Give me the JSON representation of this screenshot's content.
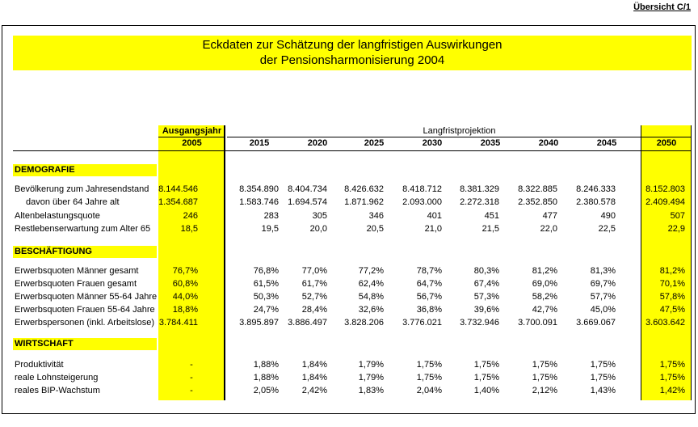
{
  "header": {
    "uebersicht": "Übersicht C/1"
  },
  "title": {
    "line1": "Eckdaten zur Schätzung der langfristigen Auswirkungen",
    "line2": "der Pensionsharmonisierung 2004"
  },
  "columns": {
    "base_label": "Ausgangsjahr",
    "base_year": "2005",
    "projection_label": "Langfristprojektion",
    "years": [
      "2015",
      "2020",
      "2025",
      "2030",
      "2035",
      "2040",
      "2045",
      "2050"
    ]
  },
  "sections": [
    {
      "title": "DEMOGRAFIE",
      "rows": [
        {
          "label": "Bevölkerung zum Jahresendstand",
          "values": [
            "8.144.546",
            "8.354.890",
            "8.404.734",
            "8.426.632",
            "8.418.712",
            "8.381.329",
            "8.322.885",
            "8.246.333",
            "8.152.803"
          ]
        },
        {
          "label": "davon über 64 Jahre alt",
          "values": [
            "1.354.687",
            "1.583.746",
            "1.694.574",
            "1.871.962",
            "2.093.000",
            "2.272.318",
            "2.352.850",
            "2.380.578",
            "2.409.494"
          ]
        },
        {
          "label": "Altenbelastungsquote",
          "values": [
            "246",
            "283",
            "305",
            "346",
            "401",
            "451",
            "477",
            "490",
            "507"
          ]
        },
        {
          "label": "Restlebenserwartung zum Alter 65",
          "values": [
            "18,5",
            "19,5",
            "20,0",
            "20,5",
            "21,0",
            "21,5",
            "22,0",
            "22,5",
            "22,9"
          ]
        }
      ]
    },
    {
      "title": "BESCHÄFTIGUNG",
      "rows": [
        {
          "label": "Erwerbsquoten Männer gesamt",
          "values": [
            "76,7%",
            "76,8%",
            "77,0%",
            "77,2%",
            "78,7%",
            "80,3%",
            "81,2%",
            "81,3%",
            "81,2%"
          ]
        },
        {
          "label": "Erwerbsquoten Frauen gesamt",
          "values": [
            "60,8%",
            "61,5%",
            "61,7%",
            "62,4%",
            "64,7%",
            "67,4%",
            "69,0%",
            "69,7%",
            "70,1%"
          ]
        },
        {
          "label": "Erwerbsquoten Männer 55-64 Jahre",
          "values": [
            "44,0%",
            "50,3%",
            "52,7%",
            "54,8%",
            "56,7%",
            "57,3%",
            "58,2%",
            "57,7%",
            "57,8%"
          ]
        },
        {
          "label": "Erwerbsquoten Frauen 55-64 Jahre",
          "values": [
            "18,8%",
            "24,7%",
            "28,4%",
            "32,6%",
            "36,8%",
            "39,6%",
            "42,7%",
            "45,0%",
            "47,5%"
          ]
        },
        {
          "label": "Erwerbspersonen (inkl. Arbeitslose)",
          "values": [
            "3.784.411",
            "3.895.897",
            "3.886.497",
            "3.828.206",
            "3.776.021",
            "3.732.946",
            "3.700.091",
            "3.669.067",
            "3.603.642"
          ]
        }
      ]
    },
    {
      "title": "WIRTSCHAFT",
      "rows": [
        {
          "label": "Produktivität",
          "values": [
            "-",
            "1,88%",
            "1,84%",
            "1,79%",
            "1,75%",
            "1,75%",
            "1,75%",
            "1,75%",
            "1,75%"
          ]
        },
        {
          "label": "reale Lohnsteigerung",
          "values": [
            "-",
            "1,88%",
            "1,84%",
            "1,79%",
            "1,75%",
            "1,75%",
            "1,75%",
            "1,75%",
            "1,75%"
          ]
        },
        {
          "label": "reales BIP-Wachstum",
          "values": [
            "-",
            "2,05%",
            "2,42%",
            "1,83%",
            "2,04%",
            "1,40%",
            "2,12%",
            "1,43%",
            "1,42%"
          ]
        }
      ]
    }
  ]
}
